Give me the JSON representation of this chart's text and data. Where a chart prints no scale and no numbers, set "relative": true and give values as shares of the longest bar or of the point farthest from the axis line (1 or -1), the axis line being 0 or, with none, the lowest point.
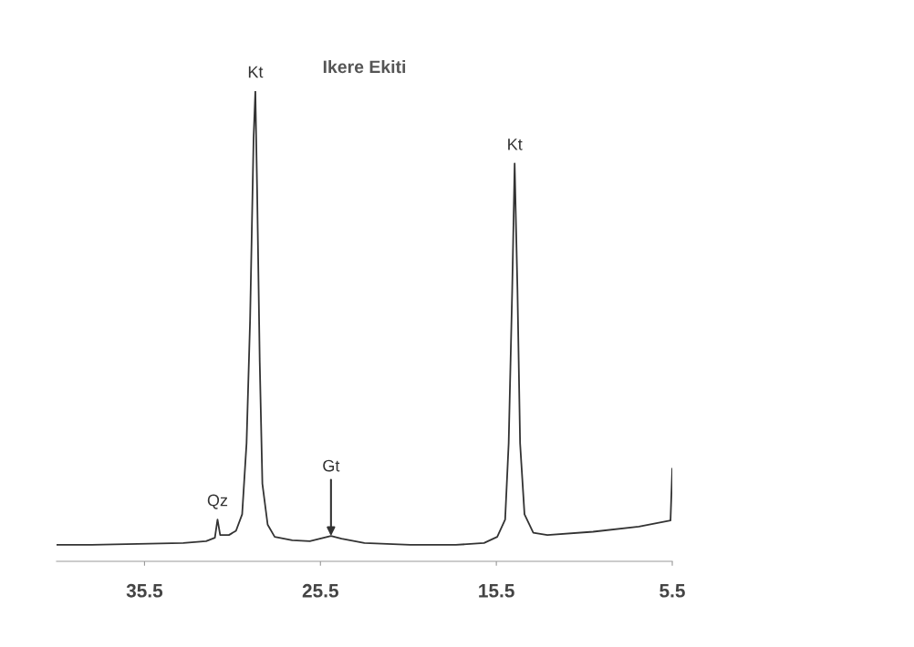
{
  "chart_data": {
    "type": "line",
    "title": "Ikere Ekiti",
    "relative": true,
    "xlim": [
      40.5,
      5.5
    ],
    "xticks": [
      35.5,
      25.5,
      15.5,
      5.5
    ],
    "grid": false,
    "legend": false,
    "marker": "none",
    "line_style": "solid",
    "tick_labels": "x",
    "series": [
      {
        "color": "#333333",
        "x": [
          40.47,
          38.5,
          35.9,
          33.3,
          32.0,
          31.5,
          31.35,
          31.2,
          30.7,
          30.3,
          29.95,
          29.7,
          29.5,
          29.3,
          29.2,
          29.1,
          28.95,
          28.8,
          28.5,
          28.1,
          27.1,
          26.1,
          24.9,
          24.3,
          23.0,
          20.4,
          17.8,
          16.2,
          15.45,
          15.0,
          14.8,
          14.6,
          14.46,
          14.3,
          14.15,
          13.9,
          13.4,
          12.6,
          10.0,
          7.4,
          5.6,
          5.5
        ],
        "values": [
          0.035,
          0.035,
          0.037,
          0.039,
          0.043,
          0.05,
          0.089,
          0.056,
          0.056,
          0.065,
          0.1,
          0.251,
          0.511,
          0.9,
          1.0,
          0.792,
          0.424,
          0.165,
          0.078,
          0.052,
          0.045,
          0.043,
          0.054,
          0.048,
          0.039,
          0.035,
          0.035,
          0.039,
          0.052,
          0.089,
          0.251,
          0.576,
          0.846,
          0.576,
          0.251,
          0.1,
          0.061,
          0.056,
          0.063,
          0.074,
          0.087,
          0.197
        ]
      }
    ],
    "annotations": [
      {
        "text": "Kt",
        "x": 29.2,
        "y": 1.0
      },
      {
        "text": "Kt",
        "x": 14.46,
        "y": 0.846
      },
      {
        "text": "Qz",
        "x": 31.35,
        "y": 0.089
      },
      {
        "text": "Gt",
        "x": 24.9,
        "y": 0.054
      }
    ]
  }
}
